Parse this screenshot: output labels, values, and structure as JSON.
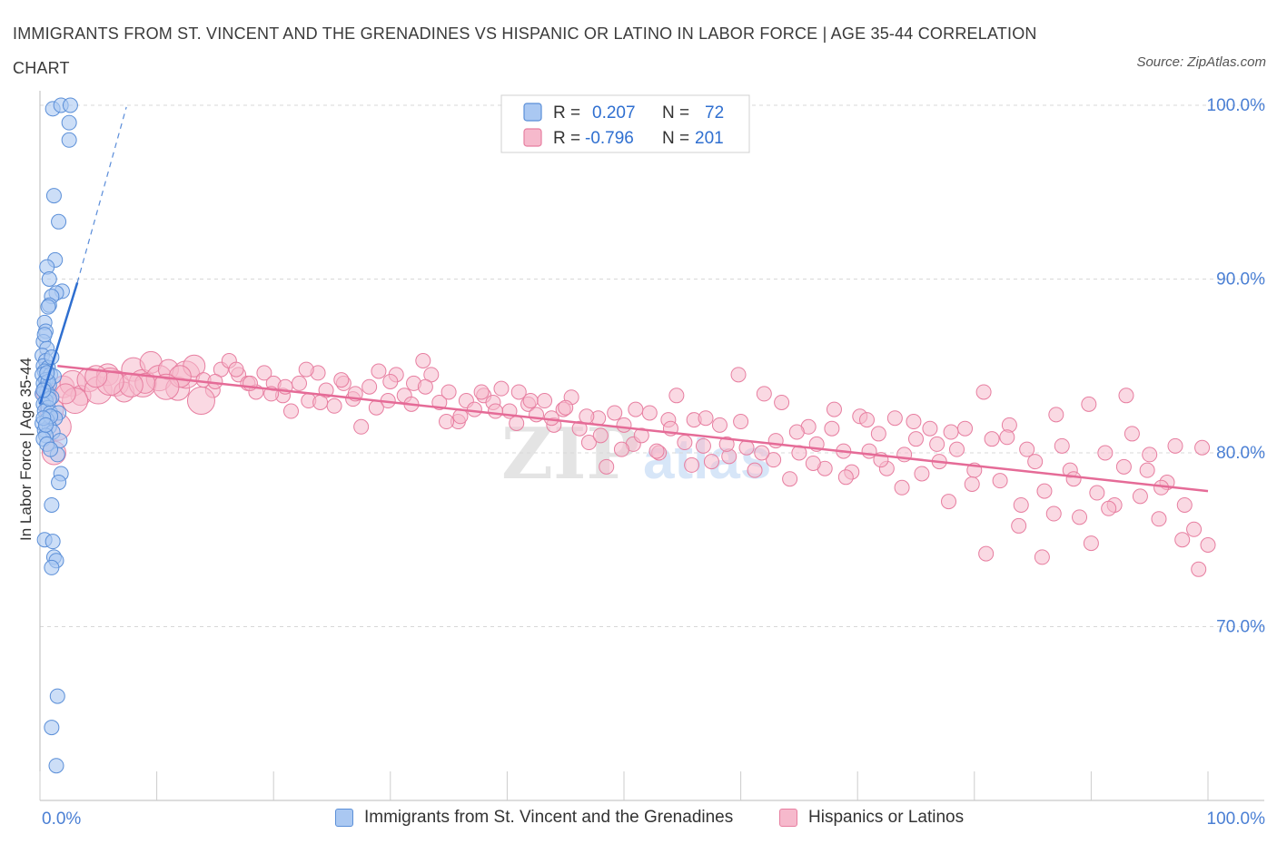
{
  "title": "IMMIGRANTS FROM ST. VINCENT AND THE GRENADINES VS HISPANIC OR LATINO IN LABOR FORCE | AGE 35-44 CORRELATION CHART",
  "source": "Source: ZipAtlas.com",
  "watermark": {
    "zip": "ZIP",
    "atlas": "atlas"
  },
  "legend_top": [
    {
      "r_label": "R =",
      "r_value": "0.207",
      "n_label": "N =",
      "n_value": "72"
    },
    {
      "r_label": "R =",
      "r_value": "-0.796",
      "n_label": "N =",
      "n_value": "201"
    }
  ],
  "colors": {
    "blue_fill": "#aac8f2",
    "blue_stroke": "#5b8fd8",
    "blue_line": "#2f6fd0",
    "pink_fill": "#f6b9cc",
    "pink_stroke": "#e77ea0",
    "pink_line": "#e56b97",
    "axis_text": "#4a7fd4",
    "grid": "#d8d8d8"
  },
  "chart_data": {
    "type": "scatter",
    "title": "IMMIGRANTS FROM ST. VINCENT AND THE GRENADINES VS HISPANIC OR LATINO IN LABOR FORCE | AGE 35-44 CORRELATION CHART",
    "xlabel": "",
    "ylabel": "In Labor Force | Age 35-44",
    "xlim": [
      0,
      100
    ],
    "ylim": [
      60,
      102
    ],
    "x_tick_labels": [
      "0.0%",
      "100.0%"
    ],
    "y_ticks": [
      70,
      80,
      90,
      100
    ],
    "y_tick_labels": [
      "70.0%",
      "80.0%",
      "90.0%",
      "100.0%"
    ],
    "grid": true,
    "legend_position": "top-center",
    "series": [
      {
        "name": "Immigrants from St. Vincent and the Grenadines",
        "R": 0.207,
        "N": 72,
        "trend": {
          "x": [
            0.0,
            3.2
          ],
          "y": [
            82.8,
            89.8
          ],
          "dashed_to": [
            7.4,
            99.9
          ]
        },
        "points": [
          [
            1.1,
            99.8
          ],
          [
            1.8,
            100.0
          ],
          [
            2.6,
            100.0
          ],
          [
            2.5,
            99.0
          ],
          [
            2.5,
            98.0
          ],
          [
            1.2,
            94.8
          ],
          [
            1.6,
            93.3
          ],
          [
            1.3,
            91.1
          ],
          [
            0.6,
            90.7
          ],
          [
            0.8,
            90.0
          ],
          [
            1.9,
            89.3
          ],
          [
            1.4,
            89.2
          ],
          [
            1.0,
            89.0
          ],
          [
            0.8,
            88.5
          ],
          [
            0.7,
            88.4
          ],
          [
            0.4,
            87.5
          ],
          [
            0.5,
            87.0
          ],
          [
            0.3,
            86.4
          ],
          [
            0.6,
            86.0
          ],
          [
            0.2,
            85.6
          ],
          [
            0.5,
            85.3
          ],
          [
            0.3,
            85.0
          ],
          [
            0.7,
            84.9
          ],
          [
            0.4,
            84.7
          ],
          [
            0.2,
            84.5
          ],
          [
            0.9,
            84.5
          ],
          [
            1.2,
            84.4
          ],
          [
            0.5,
            84.2
          ],
          [
            0.3,
            84.0
          ],
          [
            0.8,
            83.9
          ],
          [
            0.4,
            83.7
          ],
          [
            0.6,
            83.5
          ],
          [
            0.2,
            83.4
          ],
          [
            1.0,
            83.2
          ],
          [
            0.5,
            83.0
          ],
          [
            0.3,
            82.8
          ],
          [
            0.7,
            82.6
          ],
          [
            0.4,
            82.4
          ],
          [
            0.9,
            82.3
          ],
          [
            1.6,
            82.3
          ],
          [
            1.3,
            82.0
          ],
          [
            0.6,
            81.9
          ],
          [
            0.2,
            81.7
          ],
          [
            0.8,
            81.5
          ],
          [
            0.4,
            81.3
          ],
          [
            1.1,
            81.2
          ],
          [
            0.5,
            81.0
          ],
          [
            0.3,
            80.8
          ],
          [
            1.7,
            80.7
          ],
          [
            0.6,
            80.5
          ],
          [
            1.5,
            79.9
          ],
          [
            1.8,
            78.8
          ],
          [
            1.6,
            78.3
          ],
          [
            1.0,
            77.0
          ],
          [
            0.4,
            75.0
          ],
          [
            1.1,
            74.9
          ],
          [
            1.2,
            74.0
          ],
          [
            1.4,
            73.8
          ],
          [
            1.0,
            73.4
          ],
          [
            1.5,
            66.0
          ],
          [
            1.0,
            64.2
          ],
          [
            1.4,
            62.0
          ],
          [
            0.9,
            82.1
          ],
          [
            0.3,
            82.0
          ],
          [
            0.7,
            84.1
          ],
          [
            1.0,
            85.5
          ],
          [
            0.4,
            86.8
          ],
          [
            0.6,
            84.6
          ],
          [
            0.8,
            83.1
          ],
          [
            0.5,
            81.6
          ],
          [
            0.9,
            80.2
          ],
          [
            0.3,
            83.6
          ]
        ]
      },
      {
        "name": "Hispanics or Latinos",
        "R": -0.796,
        "N": 201,
        "trend": {
          "x": [
            1.5,
            100.0
          ],
          "y": [
            85.0,
            77.8
          ]
        },
        "points": [
          [
            0.5,
            83.5
          ],
          [
            1.0,
            82.5
          ],
          [
            1.5,
            81.5
          ],
          [
            2.0,
            83.8
          ],
          [
            2.8,
            84.0
          ],
          [
            3.5,
            83.3
          ],
          [
            4.2,
            84.2
          ],
          [
            5.0,
            83.6
          ],
          [
            5.8,
            84.5
          ],
          [
            6.5,
            84.0
          ],
          [
            7.2,
            83.5
          ],
          [
            8.0,
            84.8
          ],
          [
            8.8,
            84.0
          ],
          [
            9.5,
            85.2
          ],
          [
            10.2,
            84.3
          ],
          [
            11.0,
            84.8
          ],
          [
            11.8,
            83.7
          ],
          [
            12.5,
            84.5
          ],
          [
            13.2,
            85.0
          ],
          [
            14.0,
            84.2
          ],
          [
            14.8,
            83.6
          ],
          [
            15.5,
            84.8
          ],
          [
            16.2,
            85.3
          ],
          [
            17.0,
            84.5
          ],
          [
            17.8,
            84.0
          ],
          [
            18.5,
            83.5
          ],
          [
            19.2,
            84.6
          ],
          [
            20.0,
            84.0
          ],
          [
            20.8,
            83.3
          ],
          [
            21.5,
            82.4
          ],
          [
            22.2,
            84.0
          ],
          [
            23.0,
            83.0
          ],
          [
            23.8,
            84.6
          ],
          [
            24.5,
            83.6
          ],
          [
            25.2,
            82.7
          ],
          [
            26.0,
            84.0
          ],
          [
            26.8,
            83.1
          ],
          [
            27.5,
            81.5
          ],
          [
            28.2,
            83.8
          ],
          [
            29.0,
            84.7
          ],
          [
            29.8,
            83.0
          ],
          [
            30.5,
            84.5
          ],
          [
            31.2,
            83.3
          ],
          [
            32.0,
            84.0
          ],
          [
            32.8,
            85.3
          ],
          [
            33.5,
            84.5
          ],
          [
            34.2,
            82.9
          ],
          [
            35.0,
            83.5
          ],
          [
            35.8,
            81.8
          ],
          [
            36.5,
            83.0
          ],
          [
            37.2,
            82.5
          ],
          [
            38.0,
            83.3
          ],
          [
            38.8,
            82.9
          ],
          [
            39.5,
            83.7
          ],
          [
            40.2,
            82.4
          ],
          [
            41.0,
            83.5
          ],
          [
            41.8,
            82.8
          ],
          [
            42.5,
            82.2
          ],
          [
            43.2,
            83.0
          ],
          [
            44.0,
            81.6
          ],
          [
            44.8,
            82.5
          ],
          [
            45.5,
            83.2
          ],
          [
            46.2,
            81.4
          ],
          [
            47.0,
            80.6
          ],
          [
            47.8,
            82.0
          ],
          [
            48.5,
            79.2
          ],
          [
            49.2,
            82.3
          ],
          [
            50.0,
            81.6
          ],
          [
            50.8,
            80.5
          ],
          [
            51.5,
            81.0
          ],
          [
            52.2,
            82.3
          ],
          [
            53.0,
            80.0
          ],
          [
            53.8,
            81.9
          ],
          [
            54.5,
            83.3
          ],
          [
            55.2,
            80.6
          ],
          [
            56.0,
            81.9
          ],
          [
            56.8,
            80.4
          ],
          [
            57.5,
            79.5
          ],
          [
            58.2,
            81.6
          ],
          [
            59.0,
            79.8
          ],
          [
            59.8,
            84.5
          ],
          [
            60.5,
            80.3
          ],
          [
            61.2,
            79.0
          ],
          [
            62.0,
            83.4
          ],
          [
            62.8,
            79.6
          ],
          [
            63.5,
            82.9
          ],
          [
            64.2,
            78.5
          ],
          [
            65.0,
            80.0
          ],
          [
            65.8,
            81.5
          ],
          [
            66.5,
            80.5
          ],
          [
            67.2,
            79.1
          ],
          [
            68.0,
            82.5
          ],
          [
            68.8,
            80.1
          ],
          [
            69.5,
            78.9
          ],
          [
            70.2,
            82.1
          ],
          [
            71.0,
            80.1
          ],
          [
            71.8,
            81.1
          ],
          [
            72.5,
            79.1
          ],
          [
            73.2,
            82.0
          ],
          [
            74.0,
            79.9
          ],
          [
            74.8,
            81.8
          ],
          [
            75.5,
            78.8
          ],
          [
            76.2,
            81.4
          ],
          [
            77.0,
            79.5
          ],
          [
            77.8,
            77.2
          ],
          [
            78.5,
            80.2
          ],
          [
            79.2,
            81.4
          ],
          [
            80.0,
            79.0
          ],
          [
            80.8,
            83.5
          ],
          [
            81.5,
            80.8
          ],
          [
            82.2,
            78.4
          ],
          [
            83.0,
            81.6
          ],
          [
            83.8,
            75.8
          ],
          [
            84.5,
            80.2
          ],
          [
            85.2,
            79.5
          ],
          [
            86.0,
            77.8
          ],
          [
            86.8,
            76.5
          ],
          [
            87.5,
            80.4
          ],
          [
            88.2,
            79.0
          ],
          [
            89.0,
            76.3
          ],
          [
            89.8,
            82.8
          ],
          [
            90.5,
            77.7
          ],
          [
            91.2,
            80.0
          ],
          [
            92.0,
            77.0
          ],
          [
            92.8,
            79.2
          ],
          [
            93.5,
            81.1
          ],
          [
            94.2,
            77.5
          ],
          [
            95.0,
            79.9
          ],
          [
            95.8,
            76.2
          ],
          [
            96.5,
            78.3
          ],
          [
            97.2,
            80.4
          ],
          [
            98.0,
            77.0
          ],
          [
            98.8,
            75.6
          ],
          [
            99.5,
            80.3
          ],
          [
            100.0,
            74.7
          ],
          [
            99.2,
            73.3
          ],
          [
            97.8,
            75.0
          ],
          [
            96.0,
            78.0
          ],
          [
            94.8,
            79.0
          ],
          [
            93.0,
            83.3
          ],
          [
            91.5,
            76.8
          ],
          [
            90.0,
            74.8
          ],
          [
            88.5,
            78.5
          ],
          [
            87.0,
            82.2
          ],
          [
            85.8,
            74.0
          ],
          [
            84.0,
            77.0
          ],
          [
            82.8,
            80.9
          ],
          [
            81.0,
            74.2
          ],
          [
            79.8,
            78.2
          ],
          [
            78.0,
            81.2
          ],
          [
            76.8,
            80.5
          ],
          [
            75.0,
            80.8
          ],
          [
            73.8,
            78.0
          ],
          [
            72.0,
            79.6
          ],
          [
            70.8,
            81.9
          ],
          [
            69.0,
            78.6
          ],
          [
            67.8,
            81.4
          ],
          [
            66.2,
            79.4
          ],
          [
            64.8,
            81.2
          ],
          [
            63.0,
            80.7
          ],
          [
            61.8,
            80.0
          ],
          [
            60.0,
            81.8
          ],
          [
            58.8,
            80.5
          ],
          [
            57.0,
            82.0
          ],
          [
            55.8,
            79.3
          ],
          [
            54.0,
            81.4
          ],
          [
            52.8,
            80.1
          ],
          [
            51.0,
            82.5
          ],
          [
            49.8,
            80.2
          ],
          [
            48.0,
            81.0
          ],
          [
            46.8,
            82.1
          ],
          [
            45.0,
            82.6
          ],
          [
            43.8,
            82.0
          ],
          [
            42.0,
            83.0
          ],
          [
            40.8,
            81.7
          ],
          [
            39.0,
            82.4
          ],
          [
            37.8,
            83.5
          ],
          [
            36.0,
            82.1
          ],
          [
            34.8,
            81.8
          ],
          [
            33.0,
            83.8
          ],
          [
            31.8,
            82.8
          ],
          [
            30.0,
            84.1
          ],
          [
            28.8,
            82.6
          ],
          [
            27.0,
            83.4
          ],
          [
            25.8,
            84.2
          ],
          [
            24.0,
            82.9
          ],
          [
            22.8,
            84.8
          ],
          [
            21.0,
            83.8
          ],
          [
            19.8,
            83.4
          ],
          [
            18.0,
            84.0
          ],
          [
            16.8,
            84.8
          ],
          [
            15.0,
            84.1
          ],
          [
            13.8,
            83.0
          ],
          [
            12.0,
            84.4
          ],
          [
            10.8,
            83.8
          ],
          [
            9.0,
            84.0
          ],
          [
            7.8,
            83.9
          ],
          [
            6.0,
            84.1
          ],
          [
            4.8,
            84.4
          ],
          [
            3.0,
            83.0
          ],
          [
            2.2,
            83.4
          ],
          [
            1.2,
            80.0
          ]
        ]
      }
    ]
  }
}
